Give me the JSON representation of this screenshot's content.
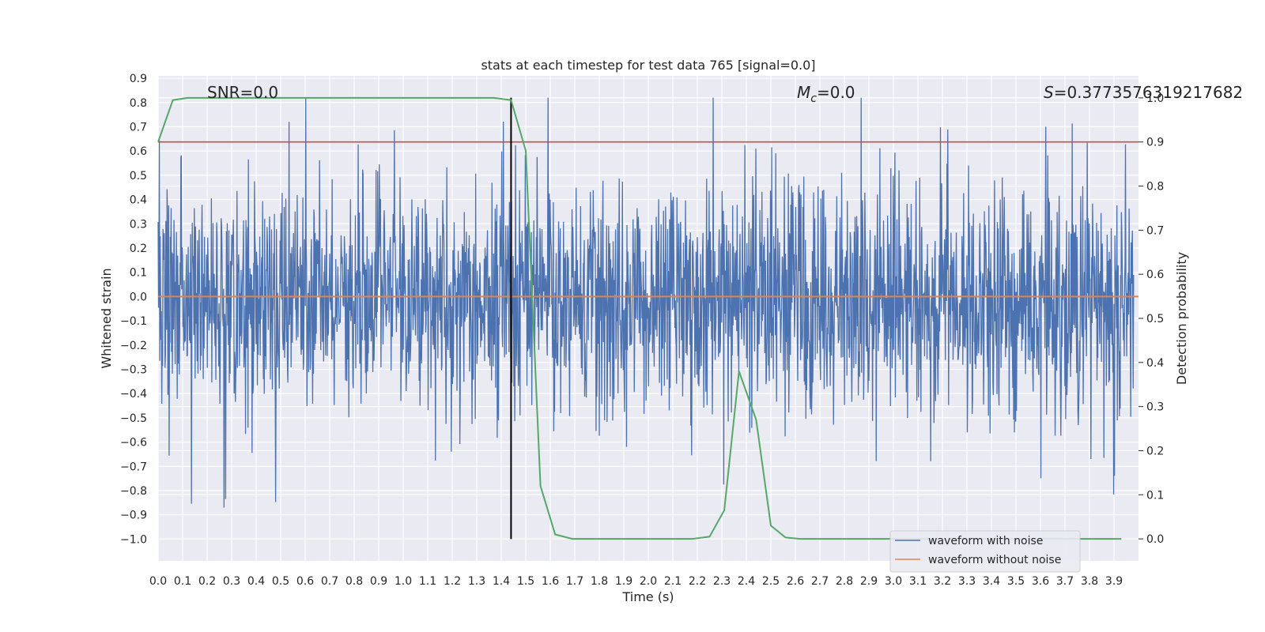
{
  "chart_data": {
    "type": "line",
    "title": "stats at each timestep for test data 765 [signal=0.0]",
    "xlabel": "Time (s)",
    "ylabel": "Whitened strain",
    "y2label": "Detection probability",
    "xlim": [
      0.0,
      4.0
    ],
    "ylim": [
      -1.09,
      0.91
    ],
    "y2lim": [
      -0.05,
      1.05
    ],
    "x_ticks": [
      "0.0",
      "0.1",
      "0.2",
      "0.3",
      "0.4",
      "0.5",
      "0.6",
      "0.7",
      "0.8",
      "0.9",
      "1.0",
      "1.1",
      "1.2",
      "1.3",
      "1.4",
      "1.5",
      "1.6",
      "1.7",
      "1.8",
      "1.9",
      "2.0",
      "2.1",
      "2.2",
      "2.3",
      "2.4",
      "2.5",
      "2.6",
      "2.7",
      "2.8",
      "2.9",
      "3.0",
      "3.1",
      "3.2",
      "3.3",
      "3.4",
      "3.5",
      "3.6",
      "3.7",
      "3.8",
      "3.9"
    ],
    "y_ticks": [
      "0.9",
      "0.8",
      "0.7",
      "0.6",
      "0.5",
      "0.4",
      "0.3",
      "0.2",
      "0.1",
      "0.0",
      "−0.1",
      "−0.2",
      "−0.3",
      "−0.4",
      "−0.5",
      "−0.6",
      "−0.7",
      "−0.8",
      "−0.9",
      "−1.0"
    ],
    "y2_ticks": [
      "1.0",
      "0.9",
      "0.8",
      "0.7",
      "0.6",
      "0.5",
      "0.4",
      "0.3",
      "0.2",
      "0.1",
      "0.0"
    ],
    "annotations": {
      "snr": "SNR=0.0",
      "mc_symbol": "M",
      "mc_sub": "c",
      "mc_value": "=0.0",
      "s_symbol": "S",
      "s_value": "=0.3773576319217682"
    },
    "legend": {
      "position": "lower right",
      "entries": [
        "waveform with noise",
        "waveform without noise"
      ]
    },
    "series": [
      {
        "name": "waveform with noise",
        "axis": "left",
        "color": "#4c72b0",
        "description": "whitened noise, approx. uniform noise in [-1.0, 0.82], sampled densely over 0.0–4.0 s",
        "seed": 765,
        "n_samples": 2400
      },
      {
        "name": "waveform without noise",
        "axis": "left",
        "color": "#dd8452",
        "x": [
          0.0,
          4.0
        ],
        "y": [
          0.0,
          0.0
        ]
      },
      {
        "name": "detection probability",
        "axis": "right",
        "color": "#55a868",
        "x": [
          0.0,
          0.06,
          0.12,
          0.19,
          0.25,
          0.31,
          0.37,
          0.44,
          0.5,
          0.56,
          0.62,
          0.68,
          0.75,
          0.81,
          0.87,
          0.93,
          1.0,
          1.06,
          1.12,
          1.18,
          1.25,
          1.31,
          1.37,
          1.44,
          1.5,
          1.56,
          1.62,
          1.69,
          1.75,
          1.81,
          1.87,
          1.93,
          2.0,
          2.06,
          2.12,
          2.18,
          2.25,
          2.31,
          2.37,
          2.44,
          2.5,
          2.56,
          2.62,
          2.68,
          2.75,
          2.81,
          2.87,
          2.93,
          3.0,
          3.06,
          3.12,
          3.19,
          3.25,
          3.31,
          3.37,
          3.44,
          3.5,
          3.56,
          3.62,
          3.68,
          3.75,
          3.81,
          3.87,
          3.93
        ],
        "y": [
          0.9,
          0.995,
          1.0,
          1.0,
          1.0,
          1.0,
          1.0,
          1.0,
          1.0,
          1.0,
          1.0,
          1.0,
          1.0,
          1.0,
          1.0,
          1.0,
          1.0,
          1.0,
          1.0,
          1.0,
          1.0,
          1.0,
          1.0,
          0.995,
          0.88,
          0.12,
          0.01,
          0.0,
          0.0,
          0.0,
          0.0,
          0.0,
          0.0,
          0.0,
          0.0,
          0.0,
          0.005,
          0.065,
          0.38,
          0.27,
          0.03,
          0.003,
          0.0,
          0.0,
          0.0,
          0.0,
          0.0,
          0.0,
          0.0,
          0.0,
          0.0,
          0.0,
          0.0,
          0.0,
          0.0,
          0.0,
          0.0,
          0.0,
          0.0,
          0.0,
          0.0,
          0.0,
          0.0,
          0.0
        ]
      }
    ],
    "reference_lines": [
      {
        "name": "threshold",
        "axis": "right",
        "orientation": "horizontal",
        "value": 0.9,
        "color": "#c44e52"
      },
      {
        "name": "event-time",
        "axis": "left",
        "orientation": "vertical",
        "value": 1.44,
        "y_range": [
          -1.0,
          0.82
        ],
        "color": "#000000"
      }
    ]
  }
}
